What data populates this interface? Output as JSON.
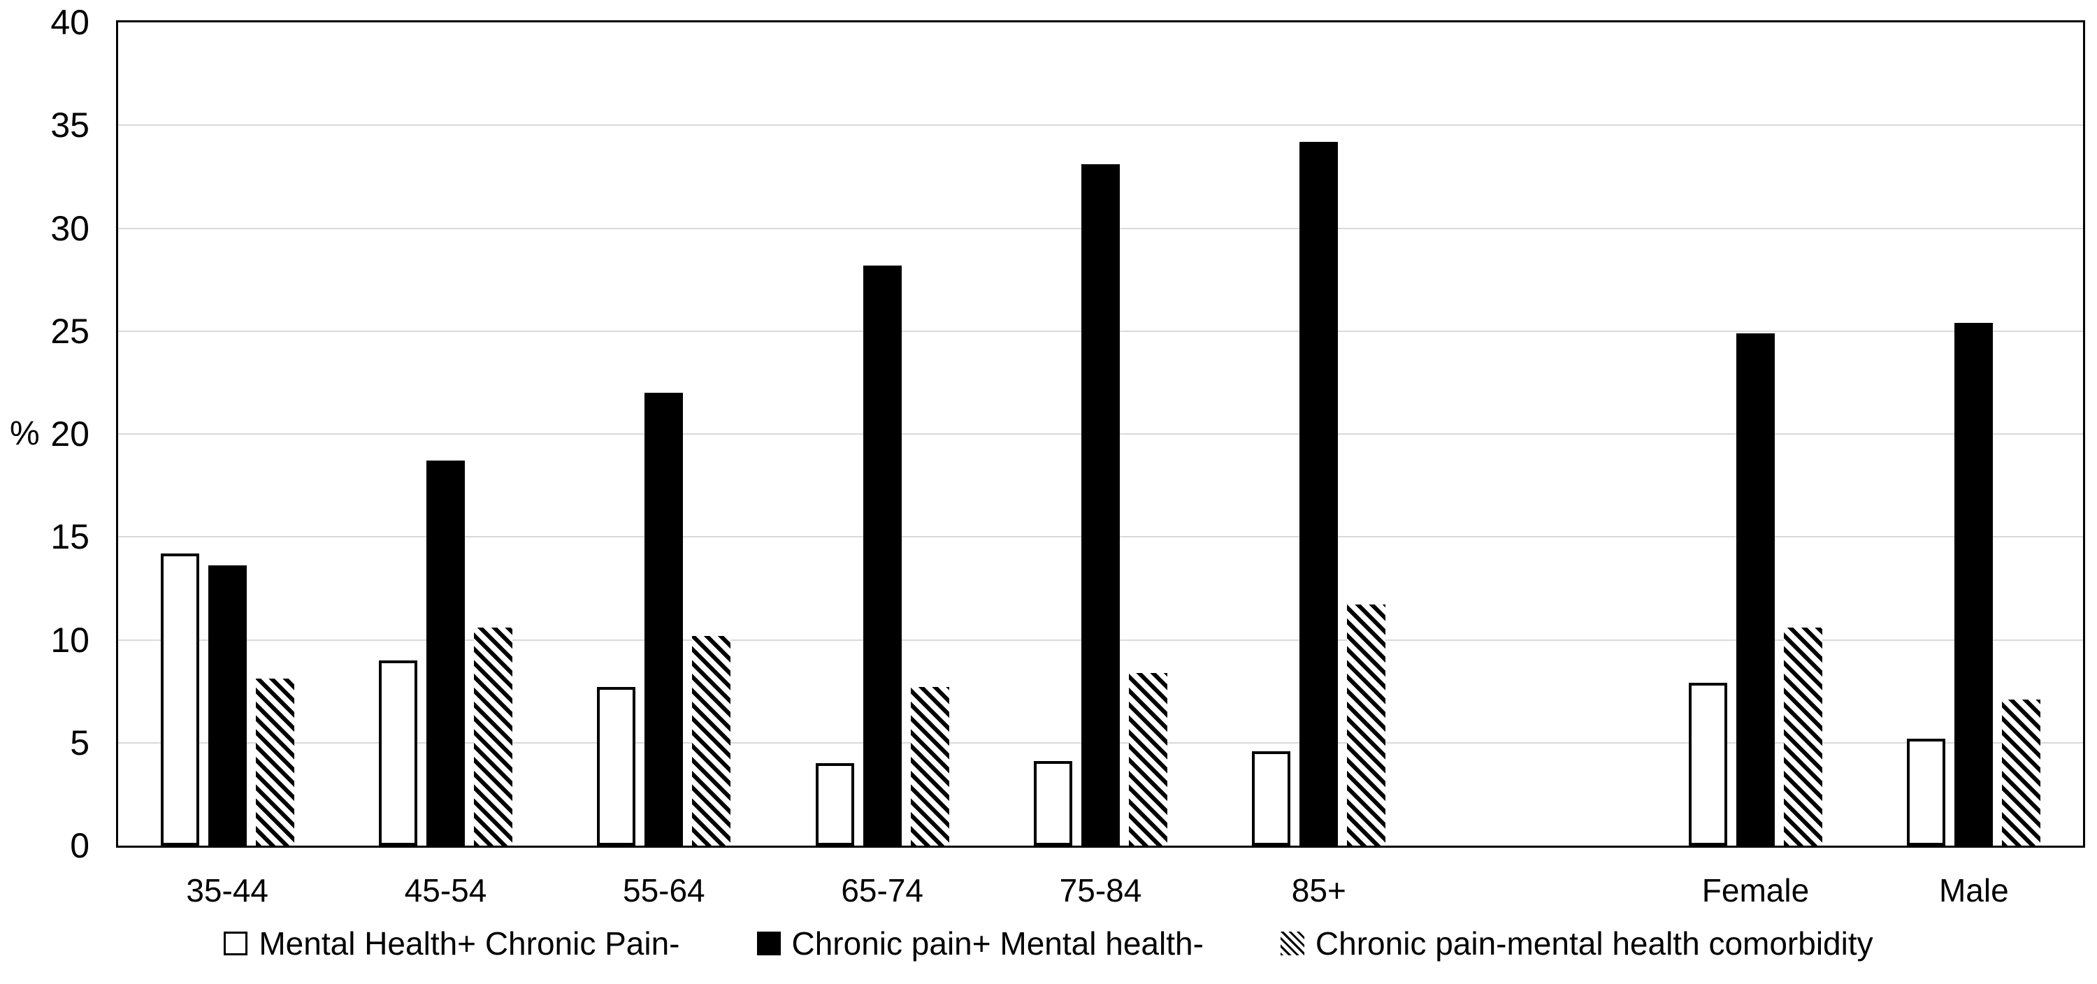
{
  "chart_data": {
    "type": "bar",
    "title": "",
    "xlabel": "",
    "ylabel": "%",
    "ylim": [
      0,
      40
    ],
    "ytick_interval": 5,
    "yticks": [
      0,
      5,
      10,
      15,
      20,
      25,
      30,
      35,
      40
    ],
    "grid": "horizontal light-gray lines every 5, black plot border",
    "legend_position": "bottom",
    "categories": [
      "35-44",
      "45-54",
      "55-64",
      "65-74",
      "75-84",
      "85+",
      "",
      "Female",
      "Male"
    ],
    "series": [
      {
        "name": "Mental Health+ Chronic Pain-",
        "style": "white-outlined",
        "values": [
          14.2,
          9.0,
          7.7,
          4.0,
          4.1,
          4.6,
          null,
          7.9,
          5.2
        ]
      },
      {
        "name": "Chronic pain+ Mental health-",
        "style": "solid-black",
        "values": [
          13.6,
          18.7,
          22.0,
          28.2,
          33.1,
          34.2,
          null,
          24.9,
          25.4
        ]
      },
      {
        "name": "Chronic pain-mental health comorbidity",
        "style": "diagonal-hatch",
        "values": [
          8.1,
          10.6,
          10.2,
          7.7,
          8.4,
          11.7,
          null,
          10.6,
          7.1
        ]
      }
    ]
  },
  "colors": {
    "background": "#ffffff",
    "bar_black": "#000000",
    "bar_white": "#ffffff",
    "bar_outline": "#000000",
    "gridline": "#d9d9d9",
    "plot_border": "#000000",
    "text": "#000000"
  }
}
